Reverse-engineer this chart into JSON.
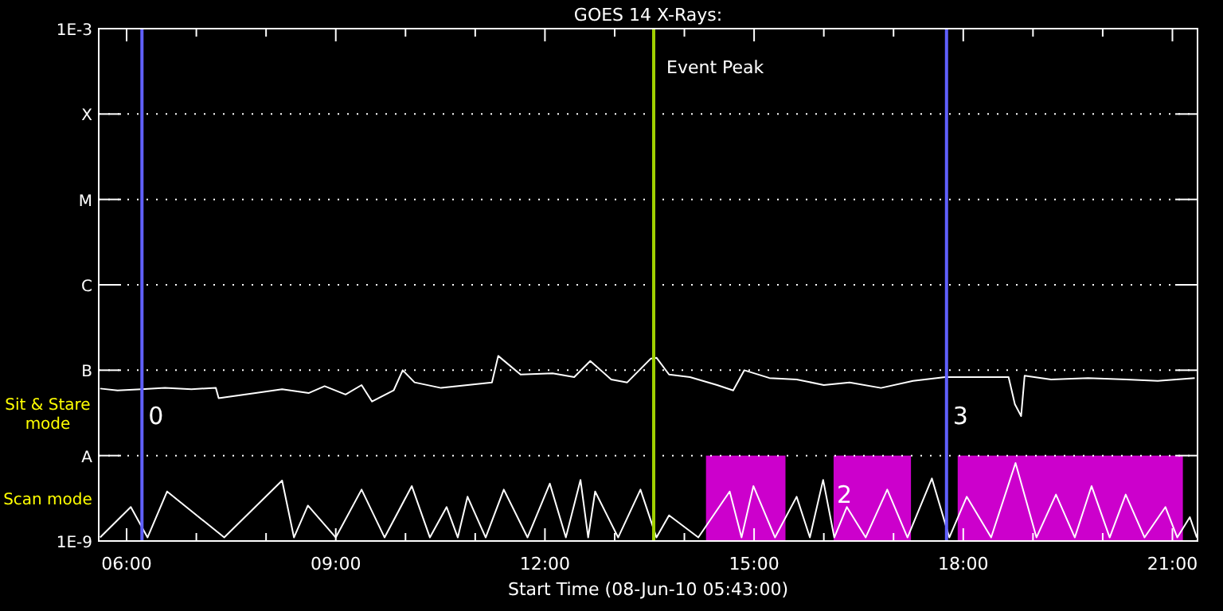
{
  "chart_data": {
    "type": "line",
    "title": "GOES 14 X-Rays:",
    "xlabel": "Start Time (08-Jun-10 05:43:00)",
    "xlim": [
      5.6,
      21.36
    ],
    "xticks": [
      {
        "value": 6,
        "label": "06:00"
      },
      {
        "value": 7,
        "label": null
      },
      {
        "value": 8,
        "label": null
      },
      {
        "value": 9,
        "label": "09:00"
      },
      {
        "value": 10,
        "label": null
      },
      {
        "value": 11,
        "label": null
      },
      {
        "value": 12,
        "label": "12:00"
      },
      {
        "value": 13,
        "label": null
      },
      {
        "value": 14,
        "label": null
      },
      {
        "value": 15,
        "label": "15:00"
      },
      {
        "value": 16,
        "label": null
      },
      {
        "value": 17,
        "label": null
      },
      {
        "value": 18,
        "label": "18:00"
      },
      {
        "value": 19,
        "label": null
      },
      {
        "value": 20,
        "label": null
      },
      {
        "value": 21,
        "label": "21:00"
      }
    ],
    "ylim": [
      1e-09,
      0.001
    ],
    "yticks": [
      {
        "value": 1e-09,
        "label": "1E-9"
      },
      {
        "value": 1e-08,
        "label": "A"
      },
      {
        "value": 1e-07,
        "label": "B"
      },
      {
        "value": 1e-06,
        "label": "C"
      },
      {
        "value": 1e-05,
        "label": "M"
      },
      {
        "value": 0.0001,
        "label": "X"
      },
      {
        "value": 0.001,
        "label": "1E-3"
      }
    ],
    "log": "y",
    "grid": "y",
    "line_style": "solid",
    "marker": "none",
    "series": [
      {
        "color": "#ffffff",
        "x": [
          5.62,
          5.87,
          6.21,
          6.55,
          6.93,
          7.28,
          7.32,
          7.85,
          8.23,
          8.61,
          8.84,
          9.14,
          9.37,
          9.52,
          9.83,
          9.96,
          10.13,
          10.51,
          10.89,
          11.24,
          11.33,
          11.65,
          12.11,
          12.42,
          12.65,
          12.95,
          13.18,
          13.52,
          13.6,
          13.78,
          14.08,
          14.47,
          14.7,
          14.86,
          15.22,
          15.61,
          16.0,
          16.37,
          16.82,
          17.28,
          17.74,
          18.19,
          18.65,
          18.74,
          18.83,
          18.88,
          19.26,
          19.79,
          20.34,
          20.79,
          21.32
        ],
        "values": [
          6.1e-08,
          5.8e-08,
          6e-08,
          6.2e-08,
          6e-08,
          6.2e-08,
          4.7e-08,
          5.4e-08,
          6e-08,
          5.4e-08,
          6.5e-08,
          5.2e-08,
          6.7e-08,
          4.3e-08,
          5.8e-08,
          1e-07,
          7.2e-08,
          6.2e-08,
          6.7e-08,
          7.2e-08,
          1.47e-07,
          8.9e-08,
          9.2e-08,
          8.3e-08,
          1.28e-07,
          7.8e-08,
          7.2e-08,
          1.37e-07,
          1.4e-07,
          8.9e-08,
          8.3e-08,
          6.7e-08,
          5.8e-08,
          1e-07,
          8.1e-08,
          7.8e-08,
          6.7e-08,
          7.2e-08,
          6.2e-08,
          7.5e-08,
          8.3e-08,
          8.3e-08,
          8.3e-08,
          4e-08,
          2.9e-08,
          8.6e-08,
          7.8e-08,
          8.1e-08,
          7.8e-08,
          7.5e-08,
          8.1e-08
        ]
      },
      {
        "color": "#ffffff",
        "x": [
          5.62,
          6.06,
          6.3,
          6.58,
          7.4,
          8.23,
          8.4,
          8.6,
          9.0,
          9.37,
          9.7,
          10.09,
          10.35,
          10.59,
          10.75,
          10.89,
          11.15,
          11.41,
          11.75,
          12.07,
          12.3,
          12.51,
          12.62,
          12.72,
          13.05,
          13.37,
          13.6,
          13.78,
          14.2,
          14.65,
          14.82,
          14.99,
          15.3,
          15.61,
          15.8,
          15.99,
          16.15,
          16.33,
          16.6,
          16.91,
          17.2,
          17.55,
          17.8,
          18.05,
          18.4,
          18.75,
          19.05,
          19.33,
          19.6,
          19.84,
          20.1,
          20.33,
          20.6,
          20.9,
          21.07,
          21.25,
          21.35
        ],
        "values": [
          1.1e-09,
          2.5e-09,
          1.1e-09,
          3.8e-09,
          1.1e-09,
          5.1e-09,
          1.1e-09,
          2.6e-09,
          1.1e-09,
          4e-09,
          1.1e-09,
          4.4e-09,
          1.1e-09,
          2.5e-09,
          1.1e-09,
          3.3e-09,
          1.1e-09,
          4e-09,
          1.1e-09,
          4.7e-09,
          1.1e-09,
          5.2e-09,
          1.1e-09,
          3.8e-09,
          1.1e-09,
          4e-09,
          1.1e-09,
          2e-09,
          1.1e-09,
          3.8e-09,
          1.1e-09,
          4.4e-09,
          1.1e-09,
          3.3e-09,
          1.1e-09,
          5.2e-09,
          1.1e-09,
          2.5e-09,
          1.1e-09,
          4e-09,
          1.1e-09,
          5.4e-09,
          1.1e-09,
          3.3e-09,
          1.1e-09,
          8.2e-09,
          1.1e-09,
          3.5e-09,
          1.1e-09,
          4.4e-09,
          1.1e-09,
          3.5e-09,
          1.1e-09,
          2.5e-09,
          1.1e-09,
          1.9e-09,
          1.1e-09
        ]
      }
    ],
    "bands": [
      {
        "axis": "x",
        "from": 14.31,
        "to": 15.45,
        "color": "#cc00cc"
      },
      {
        "axis": "x",
        "from": 16.14,
        "to": 17.25,
        "color": "#cc00cc",
        "label": "2"
      },
      {
        "axis": "x",
        "from": 17.92,
        "to": 21.15,
        "color": "#cc00cc"
      }
    ],
    "ref_lines": [
      {
        "axis": "x",
        "value": 13.56,
        "label": "Event Peak",
        "color": "#a0d000"
      },
      {
        "axis": "x",
        "value": 6.22,
        "color": "#6060ff"
      },
      {
        "axis": "x",
        "value": 17.76,
        "color": "#6060ff"
      }
    ],
    "annotations": [
      "Sit & Stare mode",
      "Scan mode",
      {
        "text": "0",
        "x": 6.22,
        "y": 3e-08
      },
      {
        "text": "3",
        "x": 17.76,
        "y": 3e-08
      }
    ]
  }
}
